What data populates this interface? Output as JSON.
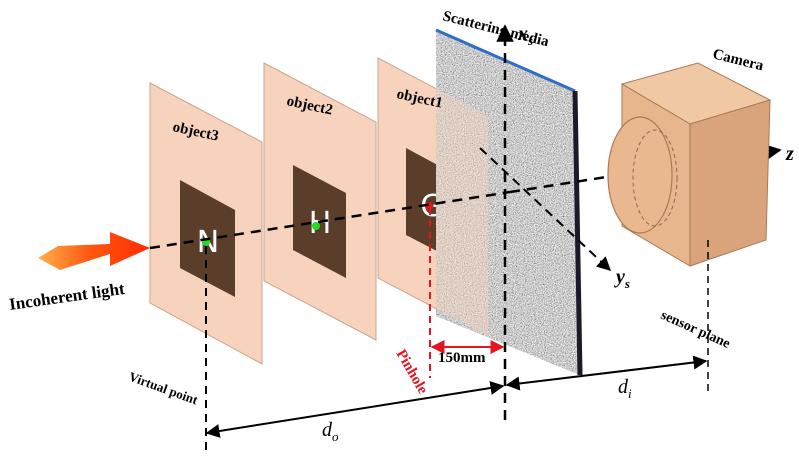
{
  "labels": {
    "object1": "object1",
    "object2": "object2",
    "object3": "object3",
    "scattering_media": "Scattering media",
    "camera": "Camera",
    "incoherent_light": "Incoherent light",
    "virtual_point": "Virtual point",
    "pinhole": "Pinhole",
    "distance_150": "150mm",
    "sensor_plane": "sensor plane",
    "axis_xs": "x",
    "axis_xs_sub": "s",
    "axis_ys": "y",
    "axis_ys_sub": "s",
    "axis_z": "z",
    "dim_do": "d",
    "dim_do_sub": "o",
    "dim_di": "d",
    "dim_di_sub": "i"
  },
  "letters": {
    "object1": "G",
    "object2": "H",
    "object3": "N"
  },
  "colors": {
    "plate_fill": "#f7d3bd",
    "plate_stroke": "#c9a58e",
    "letter_square": "#5a3e2a",
    "letter_color": "#ffffff",
    "camera_body": "#e2b088",
    "camera_dark": "#c98f63",
    "pinhole_red": "#e4151e",
    "arrow_red": "#ff3a0a",
    "arrow_orange": "#ff9a2a",
    "media_edge": "#2f6dc6",
    "text": "#000000"
  }
}
